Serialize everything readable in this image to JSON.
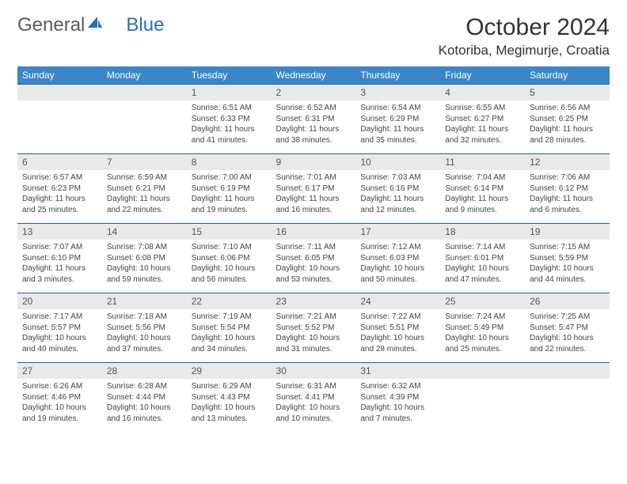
{
  "brand": {
    "part1": "General",
    "part2": "Blue"
  },
  "title": {
    "month": "October 2024",
    "location": "Kotoriba, Megimurje, Croatia"
  },
  "colors": {
    "header_bg": "#3b86c8",
    "header_text": "#ffffff",
    "daynum_bg": "#e9e9e9",
    "row_divider": "#2a5f92",
    "logo_gray": "#5a5a5a",
    "logo_blue": "#2670b8"
  },
  "weekdays": [
    "Sunday",
    "Monday",
    "Tuesday",
    "Wednesday",
    "Thursday",
    "Friday",
    "Saturday"
  ],
  "layout": {
    "first_weekday_index": 2,
    "days_in_month": 31
  },
  "days": {
    "1": {
      "sunrise": "Sunrise: 6:51 AM",
      "sunset": "Sunset: 6:33 PM",
      "daylight1": "Daylight: 11 hours",
      "daylight2": "and 41 minutes."
    },
    "2": {
      "sunrise": "Sunrise: 6:52 AM",
      "sunset": "Sunset: 6:31 PM",
      "daylight1": "Daylight: 11 hours",
      "daylight2": "and 38 minutes."
    },
    "3": {
      "sunrise": "Sunrise: 6:54 AM",
      "sunset": "Sunset: 6:29 PM",
      "daylight1": "Daylight: 11 hours",
      "daylight2": "and 35 minutes."
    },
    "4": {
      "sunrise": "Sunrise: 6:55 AM",
      "sunset": "Sunset: 6:27 PM",
      "daylight1": "Daylight: 11 hours",
      "daylight2": "and 32 minutes."
    },
    "5": {
      "sunrise": "Sunrise: 6:56 AM",
      "sunset": "Sunset: 6:25 PM",
      "daylight1": "Daylight: 11 hours",
      "daylight2": "and 28 minutes."
    },
    "6": {
      "sunrise": "Sunrise: 6:57 AM",
      "sunset": "Sunset: 6:23 PM",
      "daylight1": "Daylight: 11 hours",
      "daylight2": "and 25 minutes."
    },
    "7": {
      "sunrise": "Sunrise: 6:59 AM",
      "sunset": "Sunset: 6:21 PM",
      "daylight1": "Daylight: 11 hours",
      "daylight2": "and 22 minutes."
    },
    "8": {
      "sunrise": "Sunrise: 7:00 AM",
      "sunset": "Sunset: 6:19 PM",
      "daylight1": "Daylight: 11 hours",
      "daylight2": "and 19 minutes."
    },
    "9": {
      "sunrise": "Sunrise: 7:01 AM",
      "sunset": "Sunset: 6:17 PM",
      "daylight1": "Daylight: 11 hours",
      "daylight2": "and 16 minutes."
    },
    "10": {
      "sunrise": "Sunrise: 7:03 AM",
      "sunset": "Sunset: 6:16 PM",
      "daylight1": "Daylight: 11 hours",
      "daylight2": "and 12 minutes."
    },
    "11": {
      "sunrise": "Sunrise: 7:04 AM",
      "sunset": "Sunset: 6:14 PM",
      "daylight1": "Daylight: 11 hours",
      "daylight2": "and 9 minutes."
    },
    "12": {
      "sunrise": "Sunrise: 7:06 AM",
      "sunset": "Sunset: 6:12 PM",
      "daylight1": "Daylight: 11 hours",
      "daylight2": "and 6 minutes."
    },
    "13": {
      "sunrise": "Sunrise: 7:07 AM",
      "sunset": "Sunset: 6:10 PM",
      "daylight1": "Daylight: 11 hours",
      "daylight2": "and 3 minutes."
    },
    "14": {
      "sunrise": "Sunrise: 7:08 AM",
      "sunset": "Sunset: 6:08 PM",
      "daylight1": "Daylight: 10 hours",
      "daylight2": "and 59 minutes."
    },
    "15": {
      "sunrise": "Sunrise: 7:10 AM",
      "sunset": "Sunset: 6:06 PM",
      "daylight1": "Daylight: 10 hours",
      "daylight2": "and 56 minutes."
    },
    "16": {
      "sunrise": "Sunrise: 7:11 AM",
      "sunset": "Sunset: 6:05 PM",
      "daylight1": "Daylight: 10 hours",
      "daylight2": "and 53 minutes."
    },
    "17": {
      "sunrise": "Sunrise: 7:12 AM",
      "sunset": "Sunset: 6:03 PM",
      "daylight1": "Daylight: 10 hours",
      "daylight2": "and 50 minutes."
    },
    "18": {
      "sunrise": "Sunrise: 7:14 AM",
      "sunset": "Sunset: 6:01 PM",
      "daylight1": "Daylight: 10 hours",
      "daylight2": "and 47 minutes."
    },
    "19": {
      "sunrise": "Sunrise: 7:15 AM",
      "sunset": "Sunset: 5:59 PM",
      "daylight1": "Daylight: 10 hours",
      "daylight2": "and 44 minutes."
    },
    "20": {
      "sunrise": "Sunrise: 7:17 AM",
      "sunset": "Sunset: 5:57 PM",
      "daylight1": "Daylight: 10 hours",
      "daylight2": "and 40 minutes."
    },
    "21": {
      "sunrise": "Sunrise: 7:18 AM",
      "sunset": "Sunset: 5:56 PM",
      "daylight1": "Daylight: 10 hours",
      "daylight2": "and 37 minutes."
    },
    "22": {
      "sunrise": "Sunrise: 7:19 AM",
      "sunset": "Sunset: 5:54 PM",
      "daylight1": "Daylight: 10 hours",
      "daylight2": "and 34 minutes."
    },
    "23": {
      "sunrise": "Sunrise: 7:21 AM",
      "sunset": "Sunset: 5:52 PM",
      "daylight1": "Daylight: 10 hours",
      "daylight2": "and 31 minutes."
    },
    "24": {
      "sunrise": "Sunrise: 7:22 AM",
      "sunset": "Sunset: 5:51 PM",
      "daylight1": "Daylight: 10 hours",
      "daylight2": "and 28 minutes."
    },
    "25": {
      "sunrise": "Sunrise: 7:24 AM",
      "sunset": "Sunset: 5:49 PM",
      "daylight1": "Daylight: 10 hours",
      "daylight2": "and 25 minutes."
    },
    "26": {
      "sunrise": "Sunrise: 7:25 AM",
      "sunset": "Sunset: 5:47 PM",
      "daylight1": "Daylight: 10 hours",
      "daylight2": "and 22 minutes."
    },
    "27": {
      "sunrise": "Sunrise: 6:26 AM",
      "sunset": "Sunset: 4:46 PM",
      "daylight1": "Daylight: 10 hours",
      "daylight2": "and 19 minutes."
    },
    "28": {
      "sunrise": "Sunrise: 6:28 AM",
      "sunset": "Sunset: 4:44 PM",
      "daylight1": "Daylight: 10 hours",
      "daylight2": "and 16 minutes."
    },
    "29": {
      "sunrise": "Sunrise: 6:29 AM",
      "sunset": "Sunset: 4:43 PM",
      "daylight1": "Daylight: 10 hours",
      "daylight2": "and 13 minutes."
    },
    "30": {
      "sunrise": "Sunrise: 6:31 AM",
      "sunset": "Sunset: 4:41 PM",
      "daylight1": "Daylight: 10 hours",
      "daylight2": "and 10 minutes."
    },
    "31": {
      "sunrise": "Sunrise: 6:32 AM",
      "sunset": "Sunset: 4:39 PM",
      "daylight1": "Daylight: 10 hours",
      "daylight2": "and 7 minutes."
    }
  }
}
